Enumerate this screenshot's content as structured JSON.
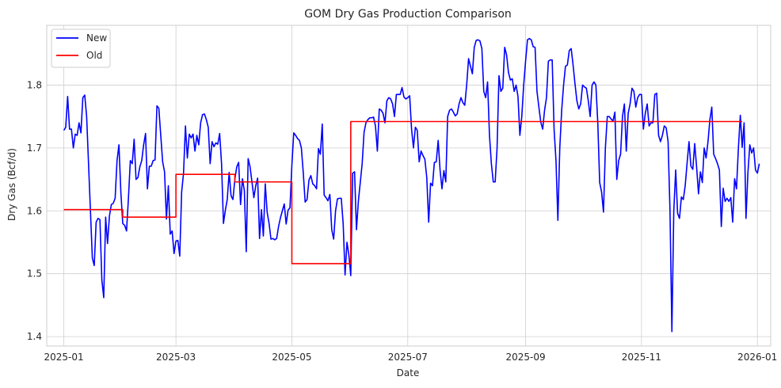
{
  "chart_data": {
    "type": "line",
    "title": "GOM Dry Gas Production Comparison",
    "xlabel": "Date",
    "ylabel": "Dry Gas (Bcf/d)",
    "xlim": [
      "2024-12-23",
      "2026-01-08"
    ],
    "ylim": [
      1.385,
      1.895
    ],
    "yticks": [
      1.4,
      1.5,
      1.6,
      1.7,
      1.8
    ],
    "xticks": [
      "2025-01-01",
      "2025-03-01",
      "2025-05-01",
      "2025-07-01",
      "2025-09-01",
      "2025-11-01",
      "2026-01-01"
    ],
    "xtick_labels": [
      "2025-01",
      "2025-03",
      "2025-05",
      "2025-07",
      "2025-09",
      "2025-11",
      "2026-01"
    ],
    "grid": true,
    "legend_position": "top-left",
    "start_date": "2025-01-01",
    "series": [
      {
        "name": "New",
        "color": "#0000ff",
        "daily": true,
        "values": [
          1.728,
          1.733,
          1.782,
          1.73,
          1.73,
          1.7,
          1.722,
          1.72,
          1.74,
          1.724,
          1.78,
          1.784,
          1.75,
          1.675,
          1.6,
          1.525,
          1.513,
          1.582,
          1.588,
          1.586,
          1.49,
          1.462,
          1.59,
          1.548,
          1.592,
          1.61,
          1.612,
          1.62,
          1.68,
          1.705,
          1.63,
          1.58,
          1.577,
          1.568,
          1.62,
          1.68,
          1.675,
          1.714,
          1.65,
          1.653,
          1.67,
          1.68,
          1.705,
          1.723,
          1.635,
          1.671,
          1.671,
          1.68,
          1.681,
          1.767,
          1.763,
          1.72,
          1.678,
          1.662,
          1.587,
          1.64,
          1.563,
          1.568,
          1.532,
          1.552,
          1.553,
          1.528,
          1.63,
          1.66,
          1.735,
          1.684,
          1.722,
          1.716,
          1.722,
          1.695,
          1.72,
          1.705,
          1.74,
          1.753,
          1.754,
          1.745,
          1.733,
          1.675,
          1.71,
          1.702,
          1.708,
          1.706,
          1.723,
          1.675,
          1.58,
          1.601,
          1.618,
          1.661,
          1.624,
          1.618,
          1.65,
          1.67,
          1.677,
          1.61,
          1.651,
          1.632,
          1.535,
          1.683,
          1.67,
          1.646,
          1.621,
          1.64,
          1.652,
          1.556,
          1.602,
          1.56,
          1.643,
          1.598,
          1.58,
          1.555,
          1.556,
          1.554,
          1.556,
          1.575,
          1.589,
          1.6,
          1.611,
          1.579,
          1.601,
          1.605,
          1.672,
          1.724,
          1.72,
          1.715,
          1.712,
          1.7,
          1.661,
          1.614,
          1.618,
          1.649,
          1.656,
          1.643,
          1.64,
          1.635,
          1.699,
          1.69,
          1.738,
          1.625,
          1.621,
          1.616,
          1.626,
          1.57,
          1.555,
          1.6,
          1.619,
          1.62,
          1.62,
          1.58,
          1.498,
          1.55,
          1.53,
          1.497,
          1.66,
          1.662,
          1.57,
          1.615,
          1.645,
          1.675,
          1.725,
          1.74,
          1.745,
          1.748,
          1.748,
          1.749,
          1.735,
          1.695,
          1.762,
          1.76,
          1.755,
          1.74,
          1.775,
          1.78,
          1.778,
          1.77,
          1.75,
          1.785,
          1.785,
          1.785,
          1.796,
          1.781,
          1.778,
          1.78,
          1.783,
          1.73,
          1.7,
          1.733,
          1.728,
          1.678,
          1.695,
          1.688,
          1.682,
          1.653,
          1.582,
          1.644,
          1.64,
          1.677,
          1.678,
          1.712,
          1.665,
          1.635,
          1.664,
          1.646,
          1.75,
          1.76,
          1.762,
          1.757,
          1.751,
          1.754,
          1.77,
          1.78,
          1.772,
          1.768,
          1.8,
          1.842,
          1.83,
          1.818,
          1.86,
          1.871,
          1.872,
          1.87,
          1.858,
          1.79,
          1.78,
          1.805,
          1.72,
          1.675,
          1.646,
          1.646,
          1.7,
          1.815,
          1.79,
          1.795,
          1.86,
          1.848,
          1.82,
          1.808,
          1.81,
          1.79,
          1.8,
          1.782,
          1.72,
          1.75,
          1.8,
          1.838,
          1.872,
          1.874,
          1.872,
          1.861,
          1.86,
          1.79,
          1.765,
          1.741,
          1.73,
          1.76,
          1.78,
          1.838,
          1.84,
          1.84,
          1.73,
          1.68,
          1.585,
          1.7,
          1.76,
          1.8,
          1.83,
          1.832,
          1.855,
          1.858,
          1.832,
          1.802,
          1.775,
          1.762,
          1.77,
          1.8,
          1.797,
          1.795,
          1.775,
          1.75,
          1.8,
          1.805,
          1.8,
          1.74,
          1.645,
          1.63,
          1.598,
          1.7,
          1.75,
          1.75,
          1.746,
          1.743,
          1.757,
          1.65,
          1.68,
          1.69,
          1.75,
          1.77,
          1.695,
          1.755,
          1.77,
          1.795,
          1.79,
          1.765,
          1.78,
          1.785,
          1.785,
          1.73,
          1.755,
          1.77,
          1.735,
          1.74,
          1.74,
          1.785,
          1.787,
          1.72,
          1.71,
          1.72,
          1.735,
          1.732,
          1.71,
          1.6,
          1.408,
          1.6,
          1.665,
          1.596,
          1.588,
          1.622,
          1.618,
          1.64,
          1.676,
          1.71,
          1.671,
          1.666,
          1.707,
          1.67,
          1.627,
          1.662,
          1.645,
          1.7,
          1.684,
          1.71,
          1.745,
          1.765,
          1.69,
          1.683,
          1.675,
          1.665,
          1.575,
          1.636,
          1.615,
          1.62,
          1.615,
          1.621,
          1.582,
          1.651,
          1.635,
          1.7,
          1.752,
          1.701,
          1.74,
          1.588,
          1.66,
          1.705,
          1.692,
          1.7,
          1.665,
          1.66,
          1.675
        ]
      },
      {
        "name": "Old",
        "color": "#ff0000",
        "monthly": true,
        "months": [
          "2025-01",
          "2025-02",
          "2025-03",
          "2025-04",
          "2025-05",
          "2025-06",
          "2025-07",
          "2025-08",
          "2025-09",
          "2025-10",
          "2025-11",
          "2025-12"
        ],
        "values": [
          1.602,
          1.59,
          1.658,
          1.646,
          1.516,
          1.742,
          1.742,
          1.742,
          1.742,
          1.742,
          1.742,
          1.742
        ],
        "end": "2025-12-24"
      }
    ]
  }
}
